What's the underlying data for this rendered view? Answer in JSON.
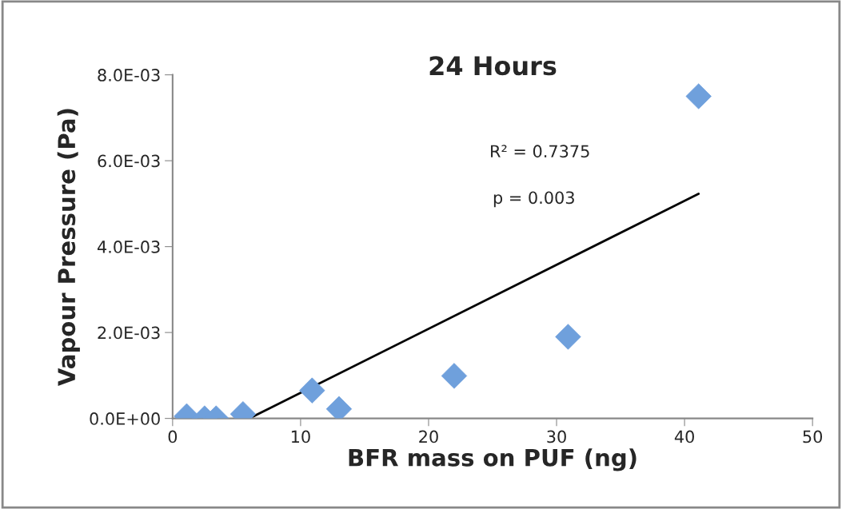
{
  "chart_data": {
    "type": "scatter",
    "title": "24 Hours",
    "xlabel": "BFR mass on PUF (ng)",
    "ylabel": "Vapour Pressure (Pa)",
    "grid": false,
    "xlim": [
      0,
      50
    ],
    "xticks": [
      0,
      10,
      20,
      30,
      40,
      50
    ],
    "ylim": [
      0,
      0.008
    ],
    "yticks": [
      {
        "value": 0,
        "label": "0.0E+00"
      },
      {
        "value": 0.002,
        "label": "2.0E-03"
      },
      {
        "value": 0.004,
        "label": "4.0E-03"
      },
      {
        "value": 0.006,
        "label": "6.0E-03"
      },
      {
        "value": 0.008,
        "label": "8.0E-03"
      }
    ],
    "series": [
      {
        "color": "#6fa0dc",
        "marker": "diamond",
        "x": [
          1.1,
          2.5,
          3.4,
          5.5,
          10.9,
          13,
          22,
          30.9,
          41.1
        ],
        "values": [
          5e-05,
          0,
          0,
          0.0001,
          0.00065,
          0.00022,
          0.00099,
          0.0019,
          0.0075
        ]
      },
      {
        "type": "line",
        "color": "#000000",
        "x": [
          6,
          41.1
        ],
        "values": [
          0,
          0.00523
        ]
      }
    ],
    "annotations": [
      "R² = 0.7375",
      "p = 0.003"
    ]
  }
}
